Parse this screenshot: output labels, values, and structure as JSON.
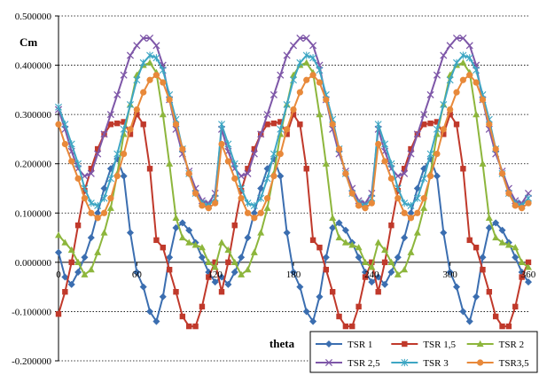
{
  "chart_data": {
    "type": "line",
    "title": "",
    "ylabel": "Cm",
    "xlabel": "theta",
    "xlim": [
      0,
      360
    ],
    "ylim": [
      -0.2,
      0.5
    ],
    "x_ticks": [
      0,
      60,
      120,
      180,
      240,
      300,
      360
    ],
    "x_tick_labels": [
      "0",
      "60",
      "120",
      "180",
      "240",
      "300",
      "360"
    ],
    "y_ticks": [
      -0.2,
      -0.1,
      0.0,
      0.1,
      0.2,
      0.3,
      0.4,
      0.5
    ],
    "y_tick_labels": [
      "-0.200000",
      "-0.100000",
      "0.000000",
      "0.100000",
      "0.200000",
      "0.300000",
      "0.400000",
      "0.500000"
    ],
    "grid": "horizontal dotted",
    "legend_position": "bottom-right",
    "legend_columns": 3,
    "x": [
      0,
      5,
      10,
      15,
      20,
      25,
      30,
      35,
      40,
      45,
      50,
      55,
      60,
      65,
      70,
      75,
      80,
      85,
      90,
      95,
      100,
      105,
      110,
      115,
      120
    ],
    "series": [
      {
        "name": "TSR 1",
        "color": "#3B6EB0",
        "marker": "diamond",
        "values": [
          0.02,
          -0.03,
          -0.045,
          -0.02,
          0.01,
          0.05,
          0.1,
          0.15,
          0.19,
          0.21,
          0.175,
          0.06,
          -0.02,
          -0.05,
          -0.1,
          -0.12,
          -0.07,
          0.01,
          0.07,
          0.08,
          0.065,
          0.04,
          0.01,
          -0.02,
          -0.04
        ]
      },
      {
        "name": "TSR 1,5",
        "color": "#C0392B",
        "marker": "square",
        "values": [
          -0.105,
          -0.06,
          0.0,
          0.075,
          0.145,
          0.19,
          0.23,
          0.26,
          0.28,
          0.282,
          0.285,
          0.26,
          0.3,
          0.28,
          0.19,
          0.045,
          0.03,
          -0.015,
          -0.06,
          -0.11,
          -0.13,
          -0.13,
          -0.09,
          -0.03,
          0.0
        ]
      },
      {
        "name": "TSR 2",
        "color": "#8DB63C",
        "marker": "triangle",
        "values": [
          0.055,
          0.04,
          0.025,
          0.0,
          -0.025,
          -0.015,
          0.02,
          0.06,
          0.11,
          0.18,
          0.26,
          0.32,
          0.38,
          0.4,
          0.405,
          0.385,
          0.3,
          0.2,
          0.09,
          0.05,
          0.04,
          0.035,
          0.03,
          0.0,
          -0.01
        ]
      },
      {
        "name": "TSR 2,5",
        "color": "#7E57A8",
        "marker": "x",
        "values": [
          0.31,
          0.27,
          0.225,
          0.19,
          0.175,
          0.18,
          0.22,
          0.26,
          0.3,
          0.34,
          0.38,
          0.42,
          0.44,
          0.455,
          0.455,
          0.44,
          0.4,
          0.33,
          0.27,
          0.22,
          0.185,
          0.15,
          0.125,
          0.12,
          0.14
        ]
      },
      {
        "name": "TSR 3",
        "color": "#3DA6C3",
        "marker": "asterisk",
        "values": [
          0.315,
          0.28,
          0.24,
          0.2,
          0.15,
          0.12,
          0.115,
          0.13,
          0.17,
          0.22,
          0.27,
          0.32,
          0.37,
          0.405,
          0.42,
          0.415,
          0.39,
          0.34,
          0.29,
          0.23,
          0.18,
          0.14,
          0.12,
          0.115,
          0.13
        ]
      },
      {
        "name": "TSR3,5",
        "color": "#E8893A",
        "marker": "circle",
        "values": [
          0.28,
          0.24,
          0.205,
          0.17,
          0.13,
          0.1,
          0.09,
          0.1,
          0.13,
          0.175,
          0.22,
          0.27,
          0.31,
          0.345,
          0.37,
          0.38,
          0.365,
          0.33,
          0.28,
          0.23,
          0.18,
          0.14,
          0.115,
          0.11,
          0.12
        ]
      }
    ],
    "periodic": {
      "period_degrees": 120,
      "repeats": 3,
      "note": ""
    }
  }
}
